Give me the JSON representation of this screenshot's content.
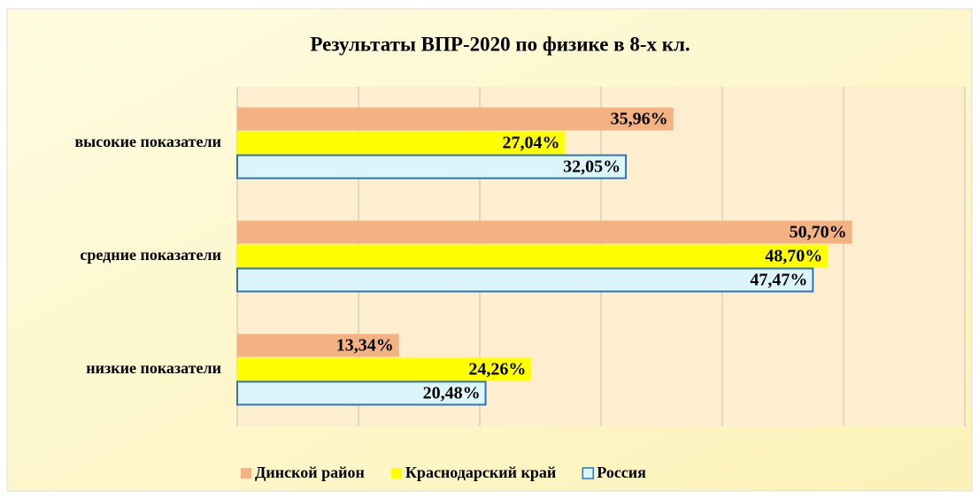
{
  "chart_data": {
    "type": "hbar",
    "title": "Результаты ВПР-2020 по физике в 8-х кл.",
    "categories": [
      "высокие показатели",
      "средние показатели",
      "низкие показатели"
    ],
    "series": [
      {
        "name": "Динской район",
        "color": "#f4b183",
        "values": [
          35.96,
          50.7,
          13.34
        ],
        "value_labels": [
          "35,96%",
          "50,70%",
          "13,34%"
        ]
      },
      {
        "name": "Краснодарский край",
        "color": "#ffff00",
        "values": [
          27.04,
          48.7,
          24.26
        ],
        "value_labels": [
          "27,04%",
          "48,70%",
          "24,26%"
        ]
      },
      {
        "name": "Россия",
        "color": "#dcf5fb",
        "border": "#2e75b6",
        "values": [
          32.05,
          47.47,
          20.48
        ],
        "value_labels": [
          "32,05%",
          "47,47%",
          "20,48%"
        ]
      }
    ],
    "xlim": [
      0,
      60
    ],
    "xticks": [
      0,
      10,
      20,
      30,
      40,
      50,
      60
    ],
    "grid": true,
    "legend": "bottom"
  }
}
